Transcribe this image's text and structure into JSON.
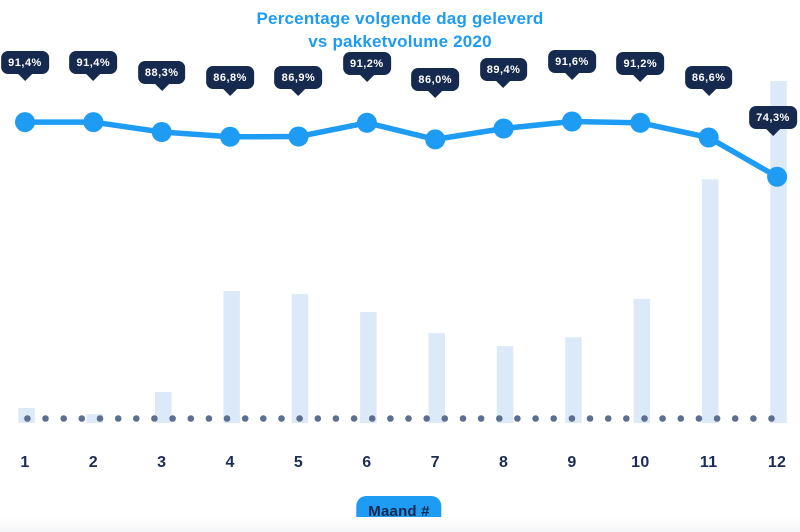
{
  "header": {
    "title_line1": "Percentage volgende dag geleverd",
    "title_line2": "vs pakketvolume 2020"
  },
  "x_axis": {
    "badge_label": "Maand #",
    "tick_labels": [
      "1",
      "2",
      "3",
      "4",
      "5",
      "6",
      "7",
      "8",
      "9",
      "10",
      "11",
      "12"
    ]
  },
  "colors": {
    "accent_blue": "#1E9BF2",
    "tooltip_navy": "#16294E",
    "bar_fill": "#DBE9F8",
    "baseline_dot": "#5D6E91",
    "tick_label_navy": "#1B2C56",
    "tooltip_text": "#FFFFFF",
    "background": "#FFFFFF"
  },
  "chart_data": {
    "type": "combo",
    "title": "Percentage volgende dag geleverd vs pakketvolume 2020",
    "categories": [
      "1",
      "2",
      "3",
      "4",
      "5",
      "6",
      "7",
      "8",
      "9",
      "10",
      "11",
      "12"
    ],
    "xlabel": "Maand #",
    "grid": false,
    "legend": false,
    "y_axis_visible": false,
    "baseline_dotted": true,
    "series": [
      {
        "name": "Percentage volgende dag geleverd",
        "type": "line",
        "unit": "%",
        "values": [
          91.4,
          91.4,
          88.3,
          86.8,
          86.9,
          91.2,
          86.0,
          89.4,
          91.6,
          91.2,
          86.6,
          74.3
        ],
        "point_labels": [
          "91,4%",
          "91,4%",
          "88,3%",
          "86,8%",
          "86,9%",
          "91,2%",
          "86,0%",
          "89,4%",
          "91,6%",
          "91,2%",
          "86,6%",
          "74,3%"
        ]
      },
      {
        "name": "Pakketvolume 2020",
        "type": "bar",
        "unit": "relative index (no numeric axis shown; max month = 100)",
        "values": [
          4.4,
          2.6,
          9.1,
          38.6,
          37.7,
          32.5,
          26.3,
          22.5,
          25.1,
          36.3,
          71.3,
          100
        ]
      }
    ]
  }
}
